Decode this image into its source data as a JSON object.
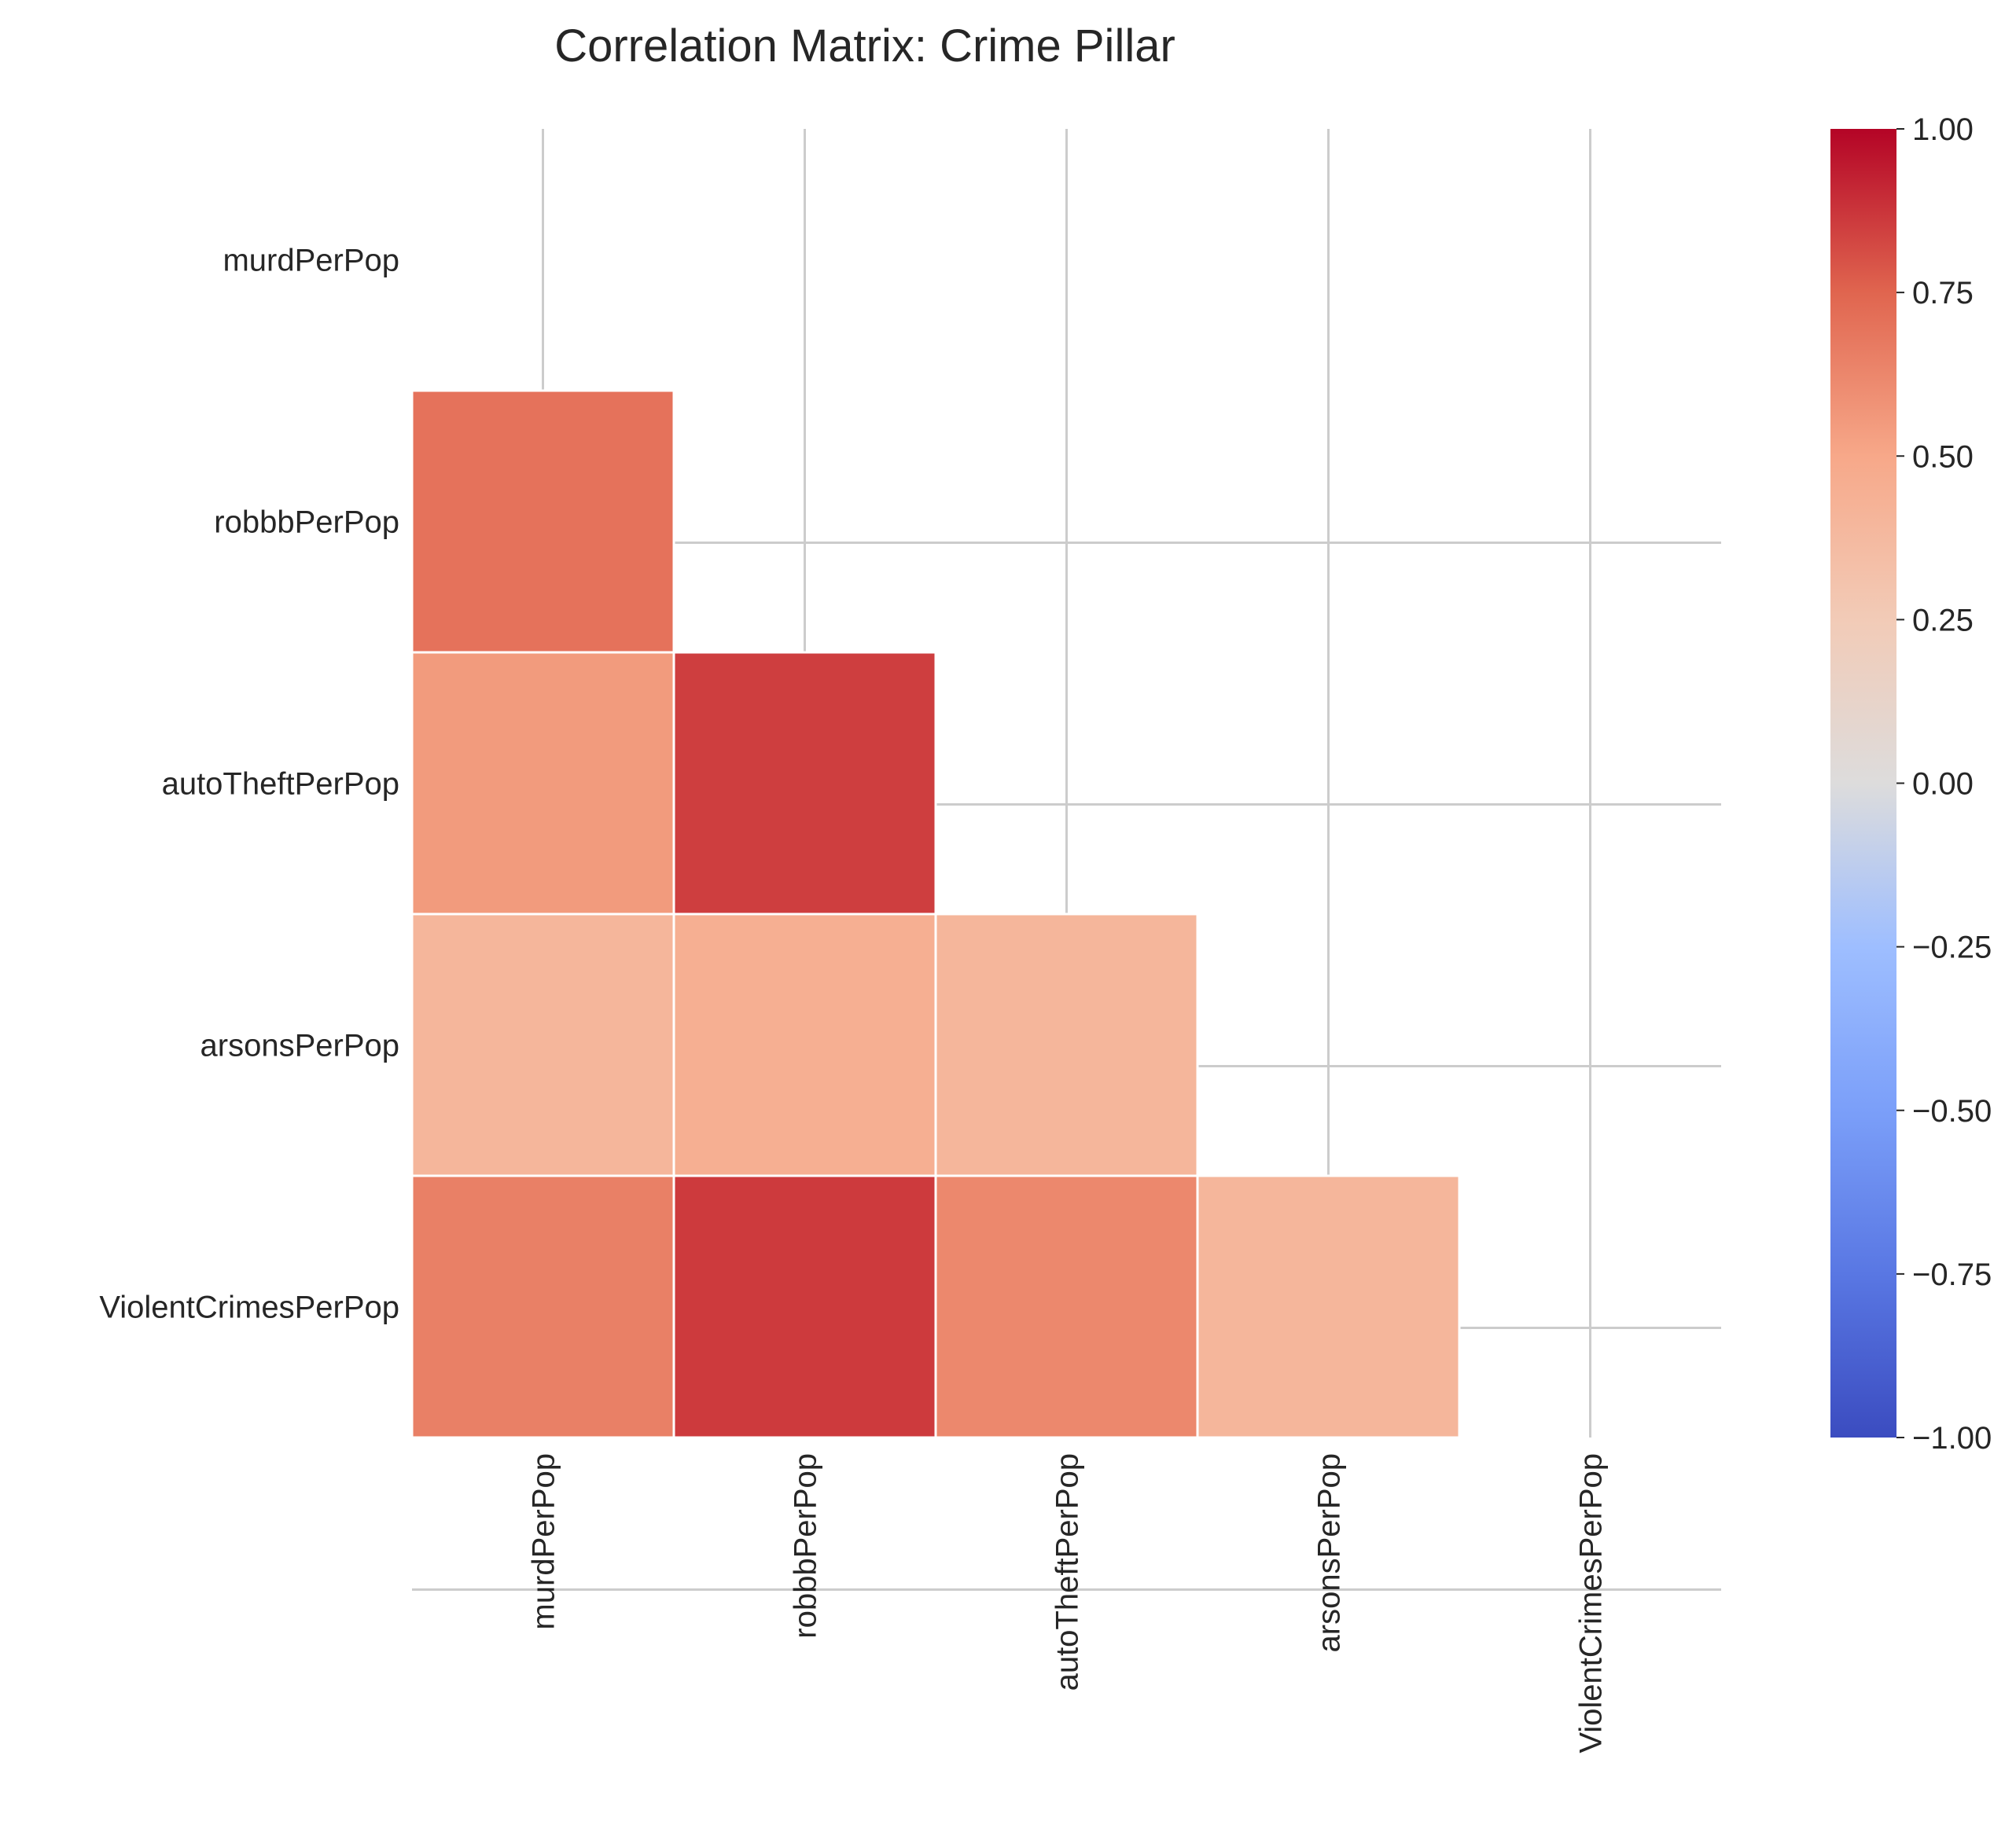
{
  "chart_data": {
    "type": "heatmap",
    "title": "Correlation Matrix: Crime Pillar",
    "xlabel": "",
    "ylabel": "",
    "rows": [
      "murdPerPop",
      "robbbPerPop",
      "autoTheftPerPop",
      "arsonsPerPop",
      "ViolentCrimesPerPop"
    ],
    "columns": [
      "murdPerPop",
      "robbbPerPop",
      "autoTheftPerPop",
      "arsonsPerPop",
      "ViolentCrimesPerPop"
    ],
    "mask": "upper triangle incl. diagonal",
    "values": [
      [
        null,
        null,
        null,
        null,
        null
      ],
      [
        0.7,
        null,
        null,
        null,
        null
      ],
      [
        0.55,
        0.85,
        null,
        null,
        null
      ],
      [
        0.4,
        0.45,
        0.4,
        null,
        null
      ],
      [
        0.65,
        0.86,
        0.62,
        0.4,
        null
      ]
    ],
    "colormap": "coolwarm",
    "vmin": -1.0,
    "vmax": 1.0,
    "colorbar": {
      "ticks": [
        "1.00",
        "0.75",
        "0.50",
        "0.25",
        "0.00",
        "−0.25",
        "−0.50",
        "−0.75",
        "−1.00"
      ],
      "tick_values": [
        1.0,
        0.75,
        0.5,
        0.25,
        0.0,
        -0.25,
        -0.5,
        -0.75,
        -1.0
      ]
    },
    "grid": true,
    "legend_position": "right"
  }
}
